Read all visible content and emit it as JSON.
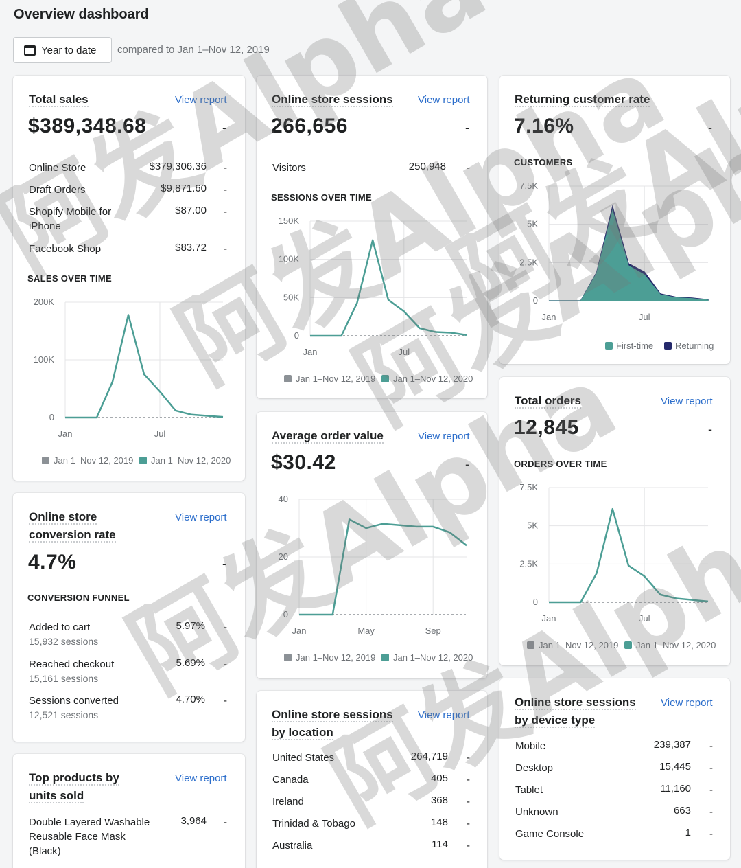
{
  "page": {
    "title": "Overview dashboard",
    "date_button": "Year to date",
    "compare_text": "compared to Jan 1–Nov 12, 2019"
  },
  "colors": {
    "accent": "#4c9e95",
    "compare": "#8c9196",
    "returning": "#24296b",
    "link": "#2c6ecb"
  },
  "total_sales": {
    "title": "Total sales",
    "link": "View report",
    "value": "$389,348.68",
    "dash": "-",
    "rows": [
      {
        "label": "Online Store",
        "value": "$379,306.36",
        "dash": "-"
      },
      {
        "label": "Draft Orders",
        "value": "$9,871.60",
        "dash": "-"
      },
      {
        "label": "Shopify Mobile for iPhone",
        "value": "$87.00",
        "dash": "-"
      },
      {
        "label": "Facebook Shop",
        "value": "$83.72",
        "dash": "-"
      }
    ],
    "chart_title": "SALES OVER TIME"
  },
  "sessions": {
    "title": "Online store sessions",
    "link": "View report",
    "value": "266,656",
    "dash": "-",
    "rows": [
      {
        "label": "Visitors",
        "value": "250,948",
        "dash": "-"
      }
    ],
    "chart_title": "SESSIONS OVER TIME"
  },
  "returning": {
    "title": "Returning customer rate",
    "value": "7.16%",
    "dash": "-",
    "chart_title": "CUSTOMERS"
  },
  "orders": {
    "title": "Total orders",
    "link": "View report",
    "value": "12,845",
    "dash": "-",
    "chart_title": "ORDERS OVER TIME"
  },
  "aov": {
    "title": "Average order value",
    "link": "View report",
    "value": "$30.42",
    "dash": "-"
  },
  "conversion": {
    "title_line1": "Online store",
    "title_line2": "conversion rate",
    "link": "View report",
    "value": "4.7%",
    "dash": "-",
    "funnel_title": "CONVERSION FUNNEL",
    "rows": [
      {
        "label": "Added to cart",
        "sessions": "15,932 sessions",
        "value": "5.97%",
        "dash": "-"
      },
      {
        "label": "Reached checkout",
        "sessions": "15,161 sessions",
        "value": "5.69%",
        "dash": "-"
      },
      {
        "label": "Sessions converted",
        "sessions": "12,521 sessions",
        "value": "4.70%",
        "dash": "-"
      }
    ]
  },
  "location": {
    "title_line1": "Online store sessions",
    "title_line2": "by location",
    "link": "View report",
    "rows": [
      {
        "label": "United States",
        "value": "264,719",
        "dash": "-"
      },
      {
        "label": "Canada",
        "value": "405",
        "dash": "-"
      },
      {
        "label": "Ireland",
        "value": "368",
        "dash": "-"
      },
      {
        "label": "Trinidad & Tobago",
        "value": "148",
        "dash": "-"
      },
      {
        "label": "Australia",
        "value": "114",
        "dash": "-"
      }
    ]
  },
  "device": {
    "title_line1": "Online store sessions",
    "title_line2": "by device type",
    "link": "View report",
    "rows": [
      {
        "label": "Mobile",
        "value": "239,387",
        "dash": "-"
      },
      {
        "label": "Desktop",
        "value": "15,445",
        "dash": "-"
      },
      {
        "label": "Tablet",
        "value": "11,160",
        "dash": "-"
      },
      {
        "label": "Unknown",
        "value": "663",
        "dash": "-"
      },
      {
        "label": "Game Console",
        "value": "1",
        "dash": "-"
      }
    ]
  },
  "top_products": {
    "title_line1": "Top products by",
    "title_line2": "units sold",
    "link": "View report",
    "rows": [
      {
        "label": "Double Layered Washable Reusable Face Mask (Black)",
        "value": "3,964",
        "dash": "-"
      }
    ]
  },
  "watermark": {
    "text": "阿发Alpha"
  },
  "chart_data": [
    {
      "type": "line",
      "title": "SALES OVER TIME",
      "x": [
        "Jan",
        "Feb",
        "Mar",
        "Apr",
        "May",
        "Jun",
        "Jul",
        "Aug",
        "Sep",
        "Oct",
        "Nov"
      ],
      "x_tick_labels": [
        "Jan",
        "Jul"
      ],
      "y_tick_labels": [
        "200K",
        "100K",
        "0"
      ],
      "ylim": [
        0,
        200000
      ],
      "series": [
        {
          "name": "Jan 1–Nov 12, 2019",
          "values": [
            0,
            0,
            0,
            0,
            0,
            0,
            0,
            0,
            0,
            0,
            0
          ]
        },
        {
          "name": "Jan 1–Nov 12, 2020",
          "values": [
            0,
            0,
            0,
            62000,
            178000,
            75000,
            45000,
            12000,
            5000,
            3000,
            1000
          ]
        }
      ]
    },
    {
      "type": "line",
      "title": "SESSIONS OVER TIME",
      "x": [
        "Jan",
        "Feb",
        "Mar",
        "Apr",
        "May",
        "Jun",
        "Jul",
        "Aug",
        "Sep",
        "Oct",
        "Nov"
      ],
      "x_tick_labels": [
        "Jan",
        "Jul"
      ],
      "y_tick_labels": [
        "150K",
        "100K",
        "50K",
        "0"
      ],
      "ylim": [
        0,
        150000
      ],
      "series": [
        {
          "name": "Jan 1–Nov 12, 2019",
          "values": [
            0,
            0,
            0,
            0,
            0,
            0,
            0,
            0,
            0,
            0,
            0
          ]
        },
        {
          "name": "Jan 1–Nov 12, 2020",
          "values": [
            0,
            0,
            0,
            43000,
            125000,
            47000,
            32000,
            10000,
            5000,
            4000,
            1000
          ]
        }
      ]
    },
    {
      "type": "area",
      "title": "CUSTOMERS",
      "x": [
        "Jan",
        "Feb",
        "Mar",
        "Apr",
        "May",
        "Jun",
        "Jul",
        "Aug",
        "Sep",
        "Oct",
        "Nov"
      ],
      "x_tick_labels": [
        "Jan",
        "Jul"
      ],
      "y_tick_labels": [
        "7.5K",
        "5K",
        "2.5K",
        "0"
      ],
      "ylim": [
        0,
        7500
      ],
      "stacked": true,
      "series": [
        {
          "name": "First-time",
          "values": [
            0,
            0,
            0,
            1800,
            5900,
            2300,
            1700,
            400,
            200,
            150,
            50
          ]
        },
        {
          "name": "Returning",
          "values": [
            0,
            0,
            0,
            50,
            250,
            130,
            180,
            50,
            30,
            30,
            20
          ]
        }
      ]
    },
    {
      "type": "line",
      "title": "ORDERS OVER TIME",
      "x": [
        "Jan",
        "Feb",
        "Mar",
        "Apr",
        "May",
        "Jun",
        "Jul",
        "Aug",
        "Sep",
        "Oct",
        "Nov"
      ],
      "x_tick_labels": [
        "Jan",
        "Jul"
      ],
      "y_tick_labels": [
        "7.5K",
        "5K",
        "2.5K",
        "0"
      ],
      "ylim": [
        0,
        7500
      ],
      "series": [
        {
          "name": "Jan 1–Nov 12, 2019",
          "values": [
            0,
            0,
            0,
            0,
            0,
            0,
            0,
            0,
            0,
            0,
            0
          ]
        },
        {
          "name": "Jan 1–Nov 12, 2020",
          "values": [
            0,
            0,
            0,
            1900,
            6100,
            2400,
            1700,
            500,
            250,
            150,
            50
          ]
        }
      ]
    },
    {
      "type": "line",
      "title": "Average order value",
      "x": [
        "Jan",
        "Feb",
        "Mar",
        "Apr",
        "May",
        "Jun",
        "Jul",
        "Aug",
        "Sep",
        "Oct",
        "Nov"
      ],
      "x_tick_labels": [
        "Jan",
        "May",
        "Sep"
      ],
      "y_tick_labels": [
        "40",
        "20",
        "0"
      ],
      "ylim": [
        0,
        40
      ],
      "series": [
        {
          "name": "Jan 1–Nov 12, 2019",
          "values": [
            0,
            0,
            0,
            0,
            0,
            0,
            0,
            0,
            0,
            0,
            0
          ]
        },
        {
          "name": "Jan 1–Nov 12, 2020",
          "values": [
            0,
            0,
            0,
            33,
            30,
            31.5,
            31,
            30.5,
            30.5,
            28.5,
            24
          ]
        }
      ]
    }
  ]
}
